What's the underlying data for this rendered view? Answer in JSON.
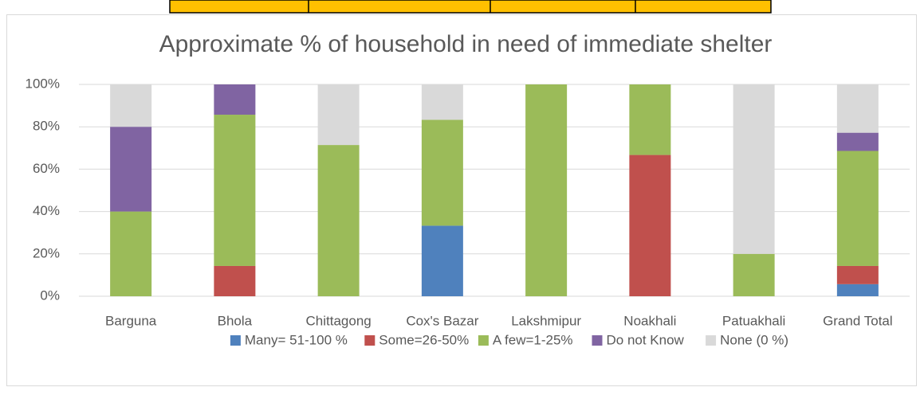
{
  "chart_data": {
    "type": "stacked_bar",
    "title": "Approximate %  of household in need of immediate shelter",
    "categories": [
      "Barguna",
      "Bhola",
      "Chittagong",
      "Cox's Bazar",
      "Lakshmipur",
      "Noakhali",
      "Patuakhali",
      "Grand Total"
    ],
    "series": [
      {
        "name": "Many= 51-100 %",
        "color": "#4f81bd",
        "values": [
          0,
          0,
          0,
          33.3,
          0,
          0,
          0,
          5.7
        ]
      },
      {
        "name": "Some=26-50%",
        "color": "#c0504d",
        "values": [
          0,
          14.3,
          0,
          0,
          0,
          66.7,
          0,
          8.6
        ]
      },
      {
        "name": "A few=1-25%",
        "color": "#9bbb59",
        "values": [
          40,
          71.4,
          71.4,
          50,
          100,
          33.3,
          20,
          54.3
        ]
      },
      {
        "name": "Do not Know",
        "color": "#8064a2",
        "values": [
          40,
          14.3,
          0,
          0,
          0,
          0,
          0,
          8.6
        ]
      },
      {
        "name": "None (0 %)",
        "color": "#d9d9d9",
        "values": [
          20,
          0,
          28.6,
          16.7,
          0,
          0,
          80,
          22.8
        ]
      }
    ],
    "ylim": [
      0,
      100
    ],
    "yticks": [
      {
        "value": 0,
        "label": "0%"
      },
      {
        "value": 20,
        "label": "20%"
      },
      {
        "value": 40,
        "label": "40%"
      },
      {
        "value": 60,
        "label": "60%"
      },
      {
        "value": 80,
        "label": "80%"
      },
      {
        "value": 100,
        "label": "100%"
      }
    ],
    "grid": true,
    "legend": "bottom"
  }
}
